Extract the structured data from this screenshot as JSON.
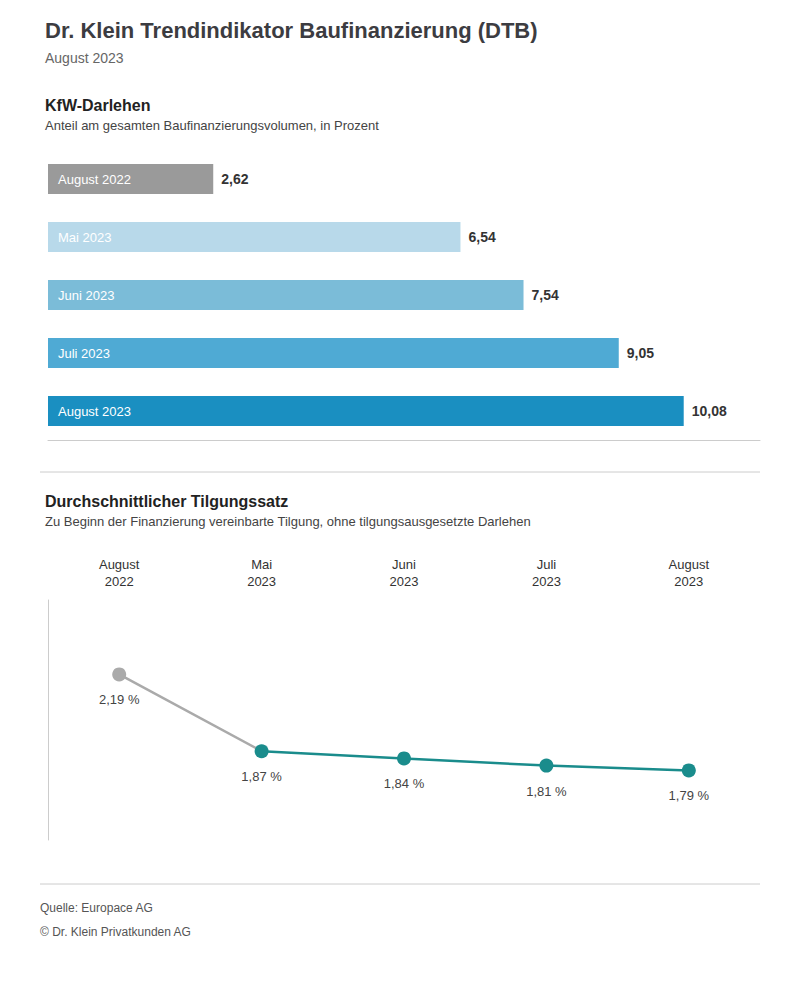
{
  "title": "Dr. Klein Trendindikator Baufinanzierung (DTB)",
  "subtitle": "August 2023",
  "annotations": [
    "Quelle: Europace AG",
    "© Dr. Klein Privatkunden AG"
  ],
  "chart_data": [
    {
      "type": "bar",
      "title": "KfW-Darlehen",
      "subtitle": "Anteil am gesamten Baufinanzierungsvolumen, in Prozent",
      "orientation": "horizontal",
      "categories": [
        "August 2022",
        "Mai 2023",
        "Juni 2023",
        "Juli 2023",
        "August 2023"
      ],
      "values": [
        2.62,
        6.54,
        7.54,
        9.05,
        10.08
      ],
      "value_labels": [
        "2,62",
        "6,54",
        "7,54",
        "9,05",
        "10,08"
      ],
      "colors": [
        "#9a9a9a",
        "#b8d9ea",
        "#7bbcd8",
        "#4faad4",
        "#1a8fc1"
      ],
      "xlim": [
        0,
        11.2896
      ],
      "data_labels": true,
      "tick_labels": false,
      "grid": false
    },
    {
      "type": "line",
      "title": "Durchschnittlicher Tilgungssatz",
      "subtitle": "Zu Beginn der Finanzierung vereinbarte Tilgung, ohne tilgungsausgesetzte Darlehen",
      "categories": [
        "August\n2022",
        "Mai\n2023",
        "Juni\n2023",
        "Juli\n2023",
        "August\n2023"
      ],
      "values": [
        2.19,
        1.87,
        1.84,
        1.81,
        1.79
      ],
      "value_labels": [
        "2,19 %",
        "1,87 %",
        "1,84 %",
        "1,81 %",
        "1,79 %"
      ],
      "color": "#1a8c8c",
      "colors": [
        "#aaaaaa",
        "#1a8c8c",
        "#1a8c8c",
        "#1a8c8c",
        "#1a8c8c"
      ],
      "marker": "circle",
      "line_style": "solid",
      "ylim": [
        1.5,
        2.5
      ],
      "data_labels": true,
      "tick_labels": "x",
      "grid": false
    }
  ]
}
